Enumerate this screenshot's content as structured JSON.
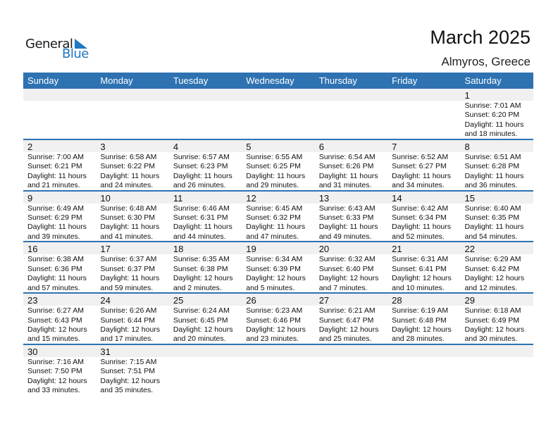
{
  "logo": {
    "line1": "General",
    "line2": "Blue"
  },
  "title": "March 2025",
  "location": "Almyros, Greece",
  "colors": {
    "header": "#2e72b2",
    "date_strip": "#f0f0f0",
    "logo_blue": "#1f78c1"
  },
  "weekdays": [
    "Sunday",
    "Monday",
    "Tuesday",
    "Wednesday",
    "Thursday",
    "Friday",
    "Saturday"
  ],
  "weeks": [
    [
      null,
      null,
      null,
      null,
      null,
      null,
      {
        "day": "1",
        "sunrise": "Sunrise: 7:01 AM",
        "sunset": "Sunset: 6:20 PM",
        "daylight": "Daylight: 11 hours",
        "minutes": "and 18 minutes."
      }
    ],
    [
      {
        "day": "2",
        "sunrise": "Sunrise: 7:00 AM",
        "sunset": "Sunset: 6:21 PM",
        "daylight": "Daylight: 11 hours",
        "minutes": "and 21 minutes."
      },
      {
        "day": "3",
        "sunrise": "Sunrise: 6:58 AM",
        "sunset": "Sunset: 6:22 PM",
        "daylight": "Daylight: 11 hours",
        "minutes": "and 24 minutes."
      },
      {
        "day": "4",
        "sunrise": "Sunrise: 6:57 AM",
        "sunset": "Sunset: 6:23 PM",
        "daylight": "Daylight: 11 hours",
        "minutes": "and 26 minutes."
      },
      {
        "day": "5",
        "sunrise": "Sunrise: 6:55 AM",
        "sunset": "Sunset: 6:25 PM",
        "daylight": "Daylight: 11 hours",
        "minutes": "and 29 minutes."
      },
      {
        "day": "6",
        "sunrise": "Sunrise: 6:54 AM",
        "sunset": "Sunset: 6:26 PM",
        "daylight": "Daylight: 11 hours",
        "minutes": "and 31 minutes."
      },
      {
        "day": "7",
        "sunrise": "Sunrise: 6:52 AM",
        "sunset": "Sunset: 6:27 PM",
        "daylight": "Daylight: 11 hours",
        "minutes": "and 34 minutes."
      },
      {
        "day": "8",
        "sunrise": "Sunrise: 6:51 AM",
        "sunset": "Sunset: 6:28 PM",
        "daylight": "Daylight: 11 hours",
        "minutes": "and 36 minutes."
      }
    ],
    [
      {
        "day": "9",
        "sunrise": "Sunrise: 6:49 AM",
        "sunset": "Sunset: 6:29 PM",
        "daylight": "Daylight: 11 hours",
        "minutes": "and 39 minutes."
      },
      {
        "day": "10",
        "sunrise": "Sunrise: 6:48 AM",
        "sunset": "Sunset: 6:30 PM",
        "daylight": "Daylight: 11 hours",
        "minutes": "and 41 minutes."
      },
      {
        "day": "11",
        "sunrise": "Sunrise: 6:46 AM",
        "sunset": "Sunset: 6:31 PM",
        "daylight": "Daylight: 11 hours",
        "minutes": "and 44 minutes."
      },
      {
        "day": "12",
        "sunrise": "Sunrise: 6:45 AM",
        "sunset": "Sunset: 6:32 PM",
        "daylight": "Daylight: 11 hours",
        "minutes": "and 47 minutes."
      },
      {
        "day": "13",
        "sunrise": "Sunrise: 6:43 AM",
        "sunset": "Sunset: 6:33 PM",
        "daylight": "Daylight: 11 hours",
        "minutes": "and 49 minutes."
      },
      {
        "day": "14",
        "sunrise": "Sunrise: 6:42 AM",
        "sunset": "Sunset: 6:34 PM",
        "daylight": "Daylight: 11 hours",
        "minutes": "and 52 minutes."
      },
      {
        "day": "15",
        "sunrise": "Sunrise: 6:40 AM",
        "sunset": "Sunset: 6:35 PM",
        "daylight": "Daylight: 11 hours",
        "minutes": "and 54 minutes."
      }
    ],
    [
      {
        "day": "16",
        "sunrise": "Sunrise: 6:38 AM",
        "sunset": "Sunset: 6:36 PM",
        "daylight": "Daylight: 11 hours",
        "minutes": "and 57 minutes."
      },
      {
        "day": "17",
        "sunrise": "Sunrise: 6:37 AM",
        "sunset": "Sunset: 6:37 PM",
        "daylight": "Daylight: 11 hours",
        "minutes": "and 59 minutes."
      },
      {
        "day": "18",
        "sunrise": "Sunrise: 6:35 AM",
        "sunset": "Sunset: 6:38 PM",
        "daylight": "Daylight: 12 hours",
        "minutes": "and 2 minutes."
      },
      {
        "day": "19",
        "sunrise": "Sunrise: 6:34 AM",
        "sunset": "Sunset: 6:39 PM",
        "daylight": "Daylight: 12 hours",
        "minutes": "and 5 minutes."
      },
      {
        "day": "20",
        "sunrise": "Sunrise: 6:32 AM",
        "sunset": "Sunset: 6:40 PM",
        "daylight": "Daylight: 12 hours",
        "minutes": "and 7 minutes."
      },
      {
        "day": "21",
        "sunrise": "Sunrise: 6:31 AM",
        "sunset": "Sunset: 6:41 PM",
        "daylight": "Daylight: 12 hours",
        "minutes": "and 10 minutes."
      },
      {
        "day": "22",
        "sunrise": "Sunrise: 6:29 AM",
        "sunset": "Sunset: 6:42 PM",
        "daylight": "Daylight: 12 hours",
        "minutes": "and 12 minutes."
      }
    ],
    [
      {
        "day": "23",
        "sunrise": "Sunrise: 6:27 AM",
        "sunset": "Sunset: 6:43 PM",
        "daylight": "Daylight: 12 hours",
        "minutes": "and 15 minutes."
      },
      {
        "day": "24",
        "sunrise": "Sunrise: 6:26 AM",
        "sunset": "Sunset: 6:44 PM",
        "daylight": "Daylight: 12 hours",
        "minutes": "and 17 minutes."
      },
      {
        "day": "25",
        "sunrise": "Sunrise: 6:24 AM",
        "sunset": "Sunset: 6:45 PM",
        "daylight": "Daylight: 12 hours",
        "minutes": "and 20 minutes."
      },
      {
        "day": "26",
        "sunrise": "Sunrise: 6:23 AM",
        "sunset": "Sunset: 6:46 PM",
        "daylight": "Daylight: 12 hours",
        "minutes": "and 23 minutes."
      },
      {
        "day": "27",
        "sunrise": "Sunrise: 6:21 AM",
        "sunset": "Sunset: 6:47 PM",
        "daylight": "Daylight: 12 hours",
        "minutes": "and 25 minutes."
      },
      {
        "day": "28",
        "sunrise": "Sunrise: 6:19 AM",
        "sunset": "Sunset: 6:48 PM",
        "daylight": "Daylight: 12 hours",
        "minutes": "and 28 minutes."
      },
      {
        "day": "29",
        "sunrise": "Sunrise: 6:18 AM",
        "sunset": "Sunset: 6:49 PM",
        "daylight": "Daylight: 12 hours",
        "minutes": "and 30 minutes."
      }
    ],
    [
      {
        "day": "30",
        "sunrise": "Sunrise: 7:16 AM",
        "sunset": "Sunset: 7:50 PM",
        "daylight": "Daylight: 12 hours",
        "minutes": "and 33 minutes."
      },
      {
        "day": "31",
        "sunrise": "Sunrise: 7:15 AM",
        "sunset": "Sunset: 7:51 PM",
        "daylight": "Daylight: 12 hours",
        "minutes": "and 35 minutes."
      },
      null,
      null,
      null,
      null,
      null
    ]
  ]
}
